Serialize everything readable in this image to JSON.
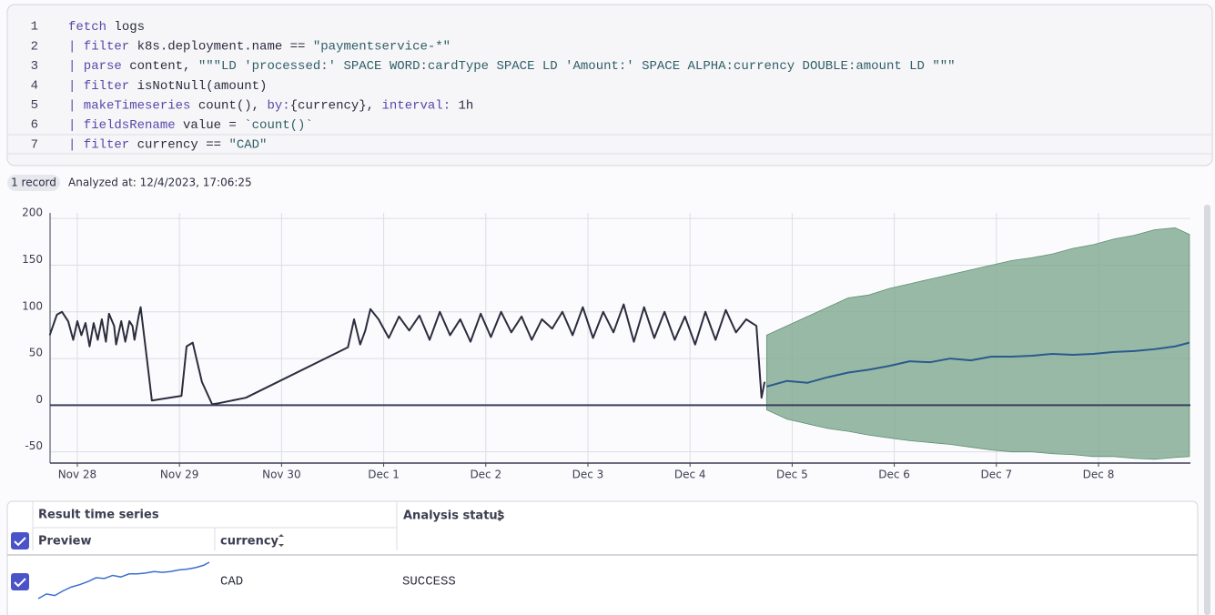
{
  "editor": {
    "line_numbers": [
      1,
      2,
      3,
      4,
      5,
      6,
      7
    ],
    "lines": [
      [
        {
          "text": "fetch",
          "style": "keyword"
        },
        {
          "text": " logs",
          "style": "plain"
        }
      ],
      [
        {
          "text": "| filter",
          "style": "keyword"
        },
        {
          "text": " k8s.deployment.name == ",
          "style": "plain"
        },
        {
          "text": "\"paymentservice-*\"",
          "style": "string"
        }
      ],
      [
        {
          "text": "| parse",
          "style": "keyword"
        },
        {
          "text": " content, ",
          "style": "plain"
        },
        {
          "text": "\"\"\"LD 'processed:' SPACE WORD:cardType SPACE LD 'Amount:' SPACE ALPHA:currency DOUBLE:amount LD \"\"\"",
          "style": "string"
        }
      ],
      [
        {
          "text": "| filter",
          "style": "keyword"
        },
        {
          "text": " isNotNull(amount)",
          "style": "plain"
        }
      ],
      [
        {
          "text": "| makeTimeseries",
          "style": "keyword"
        },
        {
          "text": " count(), ",
          "style": "plain"
        },
        {
          "text": "by:",
          "style": "keyword"
        },
        {
          "text": "{currency}, ",
          "style": "plain"
        },
        {
          "text": "interval:",
          "style": "keyword"
        },
        {
          "text": " 1h",
          "style": "plain"
        }
      ],
      [
        {
          "text": "| fieldsRename",
          "style": "keyword"
        },
        {
          "text": " value = ",
          "style": "plain"
        },
        {
          "text": "`count()`",
          "style": "string"
        }
      ],
      [
        {
          "text": "| filter",
          "style": "keyword"
        },
        {
          "text": " currency == ",
          "style": "plain"
        },
        {
          "text": "\"CAD\"",
          "style": "string"
        }
      ]
    ]
  },
  "status": {
    "badge": "1 record",
    "analyzed": "Analyzed at: 12/4/2023, 17:06:25"
  },
  "chart_data": {
    "type": "line",
    "grid": true,
    "xlim": [
      -0.267,
      10.9
    ],
    "ylim": [
      -62,
      206
    ],
    "xticks": [
      {
        "value": 0,
        "label": "Nov 28"
      },
      {
        "value": 1,
        "label": "Nov 29"
      },
      {
        "value": 2,
        "label": "Nov 30"
      },
      {
        "value": 3,
        "label": "Dec 1"
      },
      {
        "value": 4,
        "label": "Dec 2"
      },
      {
        "value": 5,
        "label": "Dec 3"
      },
      {
        "value": 6,
        "label": "Dec 4"
      },
      {
        "value": 7,
        "label": "Dec 5"
      },
      {
        "value": 8,
        "label": "Dec 6"
      },
      {
        "value": 9,
        "label": "Dec 7"
      },
      {
        "value": 10,
        "label": "Dec 8"
      }
    ],
    "yticks": [
      -50,
      0,
      50,
      100,
      150,
      200
    ],
    "series": [
      {
        "color": "#2b2d3e",
        "x": [
          -0.27,
          -0.2,
          -0.15,
          -0.09,
          -0.04,
          0,
          0.04,
          0.08,
          0.12,
          0.16,
          0.2,
          0.24,
          0.28,
          0.31,
          0.36,
          0.38,
          0.43,
          0.47,
          0.51,
          0.54,
          0.56,
          0.6,
          0.62,
          0.67,
          0.73,
          1.02,
          1.07,
          1.13,
          1.22,
          1.32,
          1.38,
          1.65,
          2.65,
          2.71,
          2.77,
          2.82,
          2.87,
          2.95,
          3.05,
          3.15,
          3.25,
          3.35,
          3.45,
          3.55,
          3.65,
          3.75,
          3.85,
          3.95,
          4.05,
          4.15,
          4.25,
          4.35,
          4.45,
          4.55,
          4.65,
          4.75,
          4.85,
          4.95,
          5.05,
          5.15,
          5.25,
          5.35,
          5.45,
          5.55,
          5.65,
          5.75,
          5.85,
          5.95,
          6.05,
          6.15,
          6.25,
          6.35,
          6.45,
          6.55,
          6.65,
          6.7,
          6.73
        ],
        "values": [
          75,
          97,
          100,
          90,
          70,
          90,
          75,
          88,
          63,
          88,
          70,
          92,
          68,
          98,
          85,
          65,
          90,
          68,
          90,
          85,
          70,
          95,
          105,
          60,
          5,
          10,
          63,
          67,
          25,
          1,
          2,
          8,
          62,
          92,
          65,
          80,
          103,
          92,
          72,
          95,
          80,
          96,
          70,
          100,
          75,
          92,
          68,
          98,
          73,
          100,
          78,
          95,
          70,
          92,
          82,
          100,
          75,
          105,
          72,
          100,
          78,
          108,
          68,
          105,
          72,
          100,
          70,
          95,
          65,
          100,
          70,
          102,
          78,
          92,
          85,
          8,
          25
        ]
      },
      {
        "color": "#2a5a8e",
        "x": [
          6.75,
          6.95,
          7.15,
          7.35,
          7.55,
          7.75,
          7.95,
          8.15,
          8.35,
          8.55,
          8.75,
          8.95,
          9.15,
          9.35,
          9.55,
          9.75,
          9.95,
          10.15,
          10.35,
          10.55,
          10.75,
          10.89
        ],
        "values": [
          20,
          26,
          24,
          30,
          35,
          38,
          42,
          47,
          46,
          50,
          48,
          52,
          52,
          53,
          55,
          54,
          55,
          57,
          58,
          60,
          63,
          67
        ]
      },
      {
        "type": "band",
        "color": "#7fa98f",
        "x": [
          6.75,
          6.95,
          7.15,
          7.35,
          7.55,
          7.75,
          7.95,
          8.15,
          8.35,
          8.55,
          8.75,
          8.95,
          9.15,
          9.35,
          9.55,
          9.75,
          9.95,
          10.15,
          10.35,
          10.55,
          10.75,
          10.89
        ],
        "upper": [
          75,
          85,
          95,
          105,
          115,
          118,
          125,
          130,
          135,
          140,
          145,
          150,
          155,
          158,
          162,
          168,
          172,
          178,
          182,
          188,
          190,
          183
        ],
        "lower": [
          -5,
          -15,
          -20,
          -25,
          -28,
          -32,
          -35,
          -38,
          -40,
          -42,
          -45,
          -48,
          -50,
          -50,
          -52,
          -53,
          -55,
          -55,
          -57,
          -58,
          -56,
          -55
        ]
      }
    ]
  },
  "table": {
    "group_header": "Result time series",
    "headers": [
      "Preview",
      "currency",
      "Analysis status"
    ],
    "rows": [
      {
        "currency": "CAD",
        "status": "SUCCESS"
      }
    ]
  }
}
